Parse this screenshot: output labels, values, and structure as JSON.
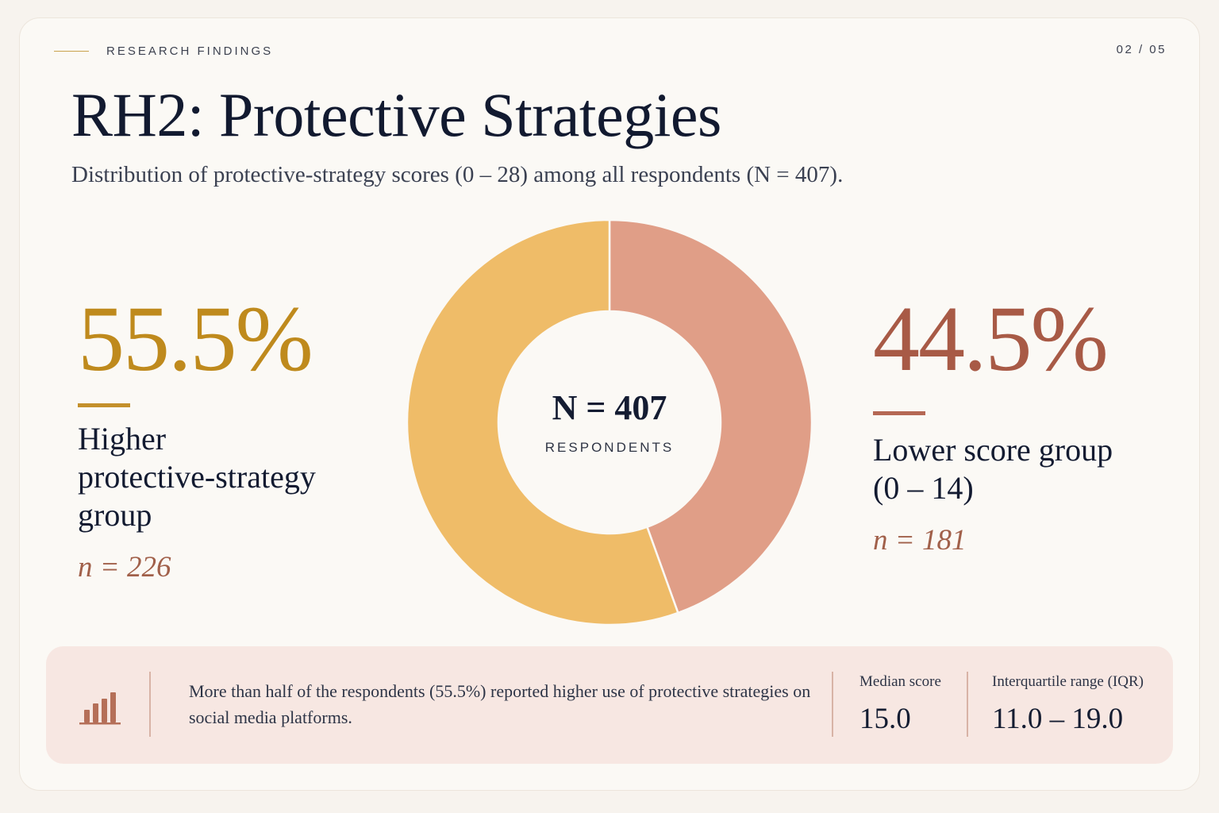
{
  "header": {
    "eyebrow": "RESEARCH FINDINGS",
    "page_indicator": "02 / 05",
    "title": "RH2: Protective Strategies",
    "subtitle": "Distribution of protective-strategy scores (0 – 28) among all respondents (N = 407)."
  },
  "left_stat": {
    "value": "55.5%",
    "label_lines": [
      "Higher",
      "protective-strategy",
      "group"
    ],
    "n": "n = 226"
  },
  "right_stat": {
    "value": "44.5%",
    "label_lines": [
      "Lower score group",
      "(0 – 14)"
    ],
    "n": "n = 181"
  },
  "chart_data": {
    "type": "pie",
    "donut": true,
    "center_value": "N = 407",
    "center_label": "RESPONDENTS",
    "slices": [
      {
        "label": "Lower score group (0 – 14)",
        "value": 44.5,
        "count": 181,
        "color": "#e09e87"
      },
      {
        "label": "Higher protective-strategy group",
        "value": 55.5,
        "count": 226,
        "color": "#efbc68"
      }
    ]
  },
  "footer": {
    "icon": "bar-chart-icon",
    "summary": "More than half of the respondents (55.5%) reported higher use of protective strategies on social media platforms.",
    "metrics": [
      {
        "label": "Median score",
        "value": "15.0"
      },
      {
        "label": "Interquartile range (IQR)",
        "value": "11.0 – 19.0"
      }
    ]
  },
  "colors": {
    "background": "#f7f3ee",
    "accent_gold": "#bf8a1d",
    "accent_terracotta": "#a85a46",
    "footer_bg": "#f7e7e2"
  }
}
